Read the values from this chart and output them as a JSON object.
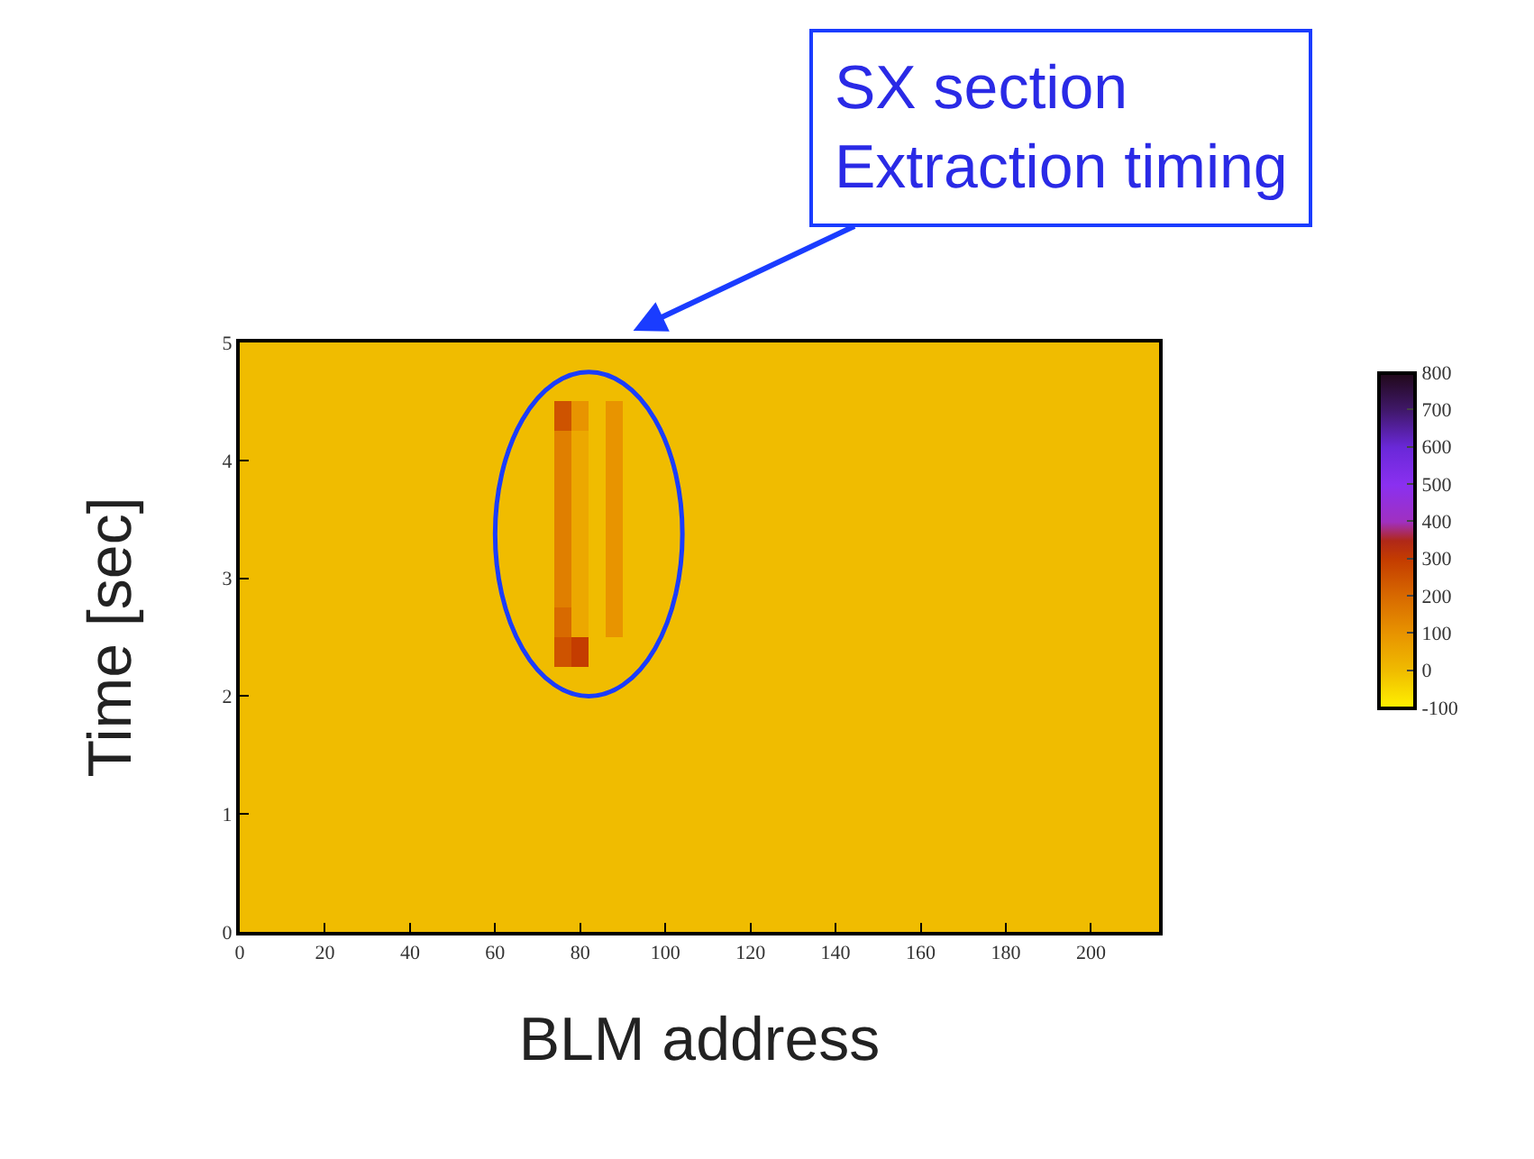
{
  "chart_data": {
    "type": "heatmap",
    "xlabel": "BLM address",
    "ylabel": "Time [sec]",
    "x": [
      0,
      4,
      8,
      12,
      16,
      20,
      24,
      28,
      32,
      36,
      40,
      44,
      48,
      52,
      56,
      60,
      64,
      68,
      72,
      76,
      80,
      84,
      88,
      92,
      96,
      100,
      104,
      108,
      112,
      116,
      120,
      124,
      128,
      132,
      136,
      140,
      144,
      148,
      152,
      156,
      160,
      164,
      168,
      172,
      176,
      180,
      184,
      188,
      192,
      196,
      200,
      204,
      208,
      212,
      216
    ],
    "y": [
      4.875,
      4.625,
      4.375,
      4.125,
      3.875,
      3.625,
      3.375,
      3.125,
      2.875,
      2.625,
      2.375,
      2.125,
      1.875,
      1.625,
      1.375,
      1.125,
      0.875,
      0.625,
      0.375,
      0.125
    ],
    "cells": [
      [
        0,
        0,
        0,
        0,
        0,
        0,
        0,
        0,
        0,
        0,
        0,
        0,
        0,
        0,
        0,
        0,
        0,
        0,
        0,
        0,
        0,
        0,
        0,
        0,
        0,
        0,
        0,
        0,
        0,
        0,
        0,
        0,
        0,
        0,
        0,
        0,
        0,
        0,
        0,
        0,
        0,
        0,
        0,
        0,
        0,
        0,
        0,
        0,
        0,
        0,
        0,
        0,
        0,
        0,
        0
      ],
      [
        0,
        0,
        0,
        0,
        0,
        0,
        0,
        0,
        0,
        0,
        0,
        0,
        0,
        0,
        0,
        0,
        0,
        0,
        0,
        0,
        0,
        0,
        0,
        0,
        0,
        0,
        0,
        0,
        0,
        0,
        0,
        0,
        0,
        0,
        0,
        0,
        0,
        0,
        0,
        0,
        0,
        0,
        0,
        0,
        0,
        0,
        0,
        0,
        0,
        0,
        0,
        0,
        0,
        0,
        0
      ],
      [
        0,
        0,
        0,
        0,
        0,
        0,
        0,
        0,
        0,
        0,
        0,
        0,
        0,
        0,
        0,
        0,
        0,
        0,
        0,
        250,
        100,
        0,
        100,
        0,
        0,
        0,
        0,
        0,
        0,
        0,
        0,
        0,
        0,
        0,
        0,
        0,
        0,
        0,
        0,
        0,
        0,
        0,
        0,
        0,
        0,
        0,
        0,
        0,
        0,
        0,
        0,
        0,
        0,
        0,
        0
      ],
      [
        0,
        0,
        0,
        0,
        0,
        0,
        0,
        0,
        0,
        0,
        0,
        0,
        0,
        0,
        0,
        0,
        0,
        0,
        0,
        150,
        50,
        0,
        100,
        0,
        0,
        0,
        0,
        0,
        0,
        0,
        0,
        0,
        0,
        0,
        0,
        0,
        0,
        0,
        0,
        0,
        0,
        0,
        0,
        0,
        0,
        0,
        0,
        0,
        0,
        0,
        0,
        0,
        0,
        0,
        0
      ],
      [
        0,
        0,
        0,
        0,
        0,
        0,
        0,
        0,
        0,
        0,
        0,
        0,
        0,
        0,
        0,
        0,
        0,
        0,
        0,
        150,
        50,
        0,
        100,
        0,
        0,
        0,
        0,
        0,
        0,
        0,
        0,
        0,
        0,
        0,
        0,
        0,
        0,
        0,
        0,
        0,
        0,
        0,
        0,
        0,
        0,
        0,
        0,
        0,
        0,
        0,
        0,
        0,
        0,
        0,
        0
      ],
      [
        0,
        0,
        0,
        0,
        0,
        0,
        0,
        0,
        0,
        0,
        0,
        0,
        0,
        0,
        0,
        0,
        0,
        0,
        0,
        150,
        50,
        0,
        100,
        0,
        0,
        0,
        0,
        0,
        0,
        0,
        0,
        0,
        0,
        0,
        0,
        0,
        0,
        0,
        0,
        0,
        0,
        0,
        0,
        0,
        0,
        0,
        0,
        0,
        0,
        0,
        0,
        0,
        0,
        0,
        0
      ],
      [
        0,
        0,
        0,
        0,
        0,
        0,
        0,
        0,
        0,
        0,
        0,
        0,
        0,
        0,
        0,
        0,
        0,
        0,
        0,
        150,
        50,
        0,
        100,
        0,
        0,
        0,
        0,
        0,
        0,
        0,
        0,
        0,
        0,
        0,
        0,
        0,
        0,
        0,
        0,
        0,
        0,
        0,
        0,
        0,
        0,
        0,
        0,
        0,
        0,
        0,
        0,
        0,
        0,
        0,
        0
      ],
      [
        0,
        0,
        0,
        0,
        0,
        0,
        0,
        0,
        0,
        0,
        0,
        0,
        0,
        0,
        0,
        0,
        0,
        0,
        0,
        150,
        50,
        0,
        100,
        0,
        0,
        0,
        0,
        0,
        0,
        0,
        0,
        0,
        0,
        0,
        0,
        0,
        0,
        0,
        0,
        0,
        0,
        0,
        0,
        0,
        0,
        0,
        0,
        0,
        0,
        0,
        0,
        0,
        0,
        0,
        0
      ],
      [
        0,
        0,
        0,
        0,
        0,
        0,
        0,
        0,
        0,
        0,
        0,
        0,
        0,
        0,
        0,
        0,
        0,
        0,
        0,
        150,
        50,
        0,
        100,
        0,
        0,
        0,
        0,
        0,
        0,
        0,
        0,
        0,
        0,
        0,
        0,
        0,
        0,
        0,
        0,
        0,
        0,
        0,
        0,
        0,
        0,
        0,
        0,
        0,
        0,
        0,
        0,
        0,
        0,
        0,
        0
      ],
      [
        0,
        0,
        0,
        0,
        0,
        0,
        0,
        0,
        0,
        0,
        0,
        0,
        0,
        0,
        0,
        0,
        0,
        0,
        0,
        200,
        50,
        0,
        100,
        0,
        0,
        0,
        0,
        0,
        0,
        0,
        0,
        0,
        0,
        0,
        0,
        0,
        0,
        0,
        0,
        0,
        0,
        0,
        0,
        0,
        0,
        0,
        0,
        0,
        0,
        0,
        0,
        0,
        0,
        0,
        0
      ],
      [
        0,
        0,
        0,
        0,
        0,
        0,
        0,
        0,
        0,
        0,
        0,
        0,
        0,
        0,
        0,
        0,
        0,
        0,
        0,
        250,
        300,
        0,
        0,
        0,
        0,
        0,
        0,
        0,
        0,
        0,
        0,
        0,
        0,
        0,
        0,
        0,
        0,
        0,
        0,
        0,
        0,
        0,
        0,
        0,
        0,
        0,
        0,
        0,
        0,
        0,
        0,
        0,
        0,
        0,
        0
      ],
      [
        0,
        0,
        0,
        0,
        0,
        0,
        0,
        0,
        0,
        0,
        0,
        0,
        0,
        0,
        0,
        0,
        0,
        0,
        0,
        0,
        0,
        0,
        0,
        0,
        0,
        0,
        0,
        0,
        0,
        0,
        0,
        0,
        0,
        0,
        0,
        0,
        0,
        0,
        0,
        0,
        0,
        0,
        0,
        0,
        0,
        0,
        0,
        0,
        0,
        0,
        0,
        0,
        0,
        0,
        0
      ],
      [
        0,
        0,
        0,
        0,
        0,
        0,
        0,
        0,
        0,
        0,
        0,
        0,
        0,
        0,
        0,
        0,
        0,
        0,
        0,
        0,
        0,
        0,
        0,
        0,
        0,
        0,
        0,
        0,
        0,
        0,
        0,
        0,
        0,
        0,
        0,
        0,
        0,
        0,
        0,
        0,
        0,
        0,
        0,
        0,
        0,
        0,
        0,
        0,
        0,
        0,
        0,
        0,
        0,
        0,
        0
      ],
      [
        0,
        0,
        0,
        0,
        0,
        0,
        0,
        0,
        0,
        0,
        0,
        0,
        0,
        0,
        0,
        0,
        0,
        0,
        0,
        0,
        0,
        0,
        0,
        0,
        0,
        0,
        0,
        0,
        0,
        0,
        0,
        0,
        0,
        0,
        0,
        0,
        0,
        0,
        0,
        0,
        0,
        0,
        0,
        0,
        0,
        0,
        0,
        0,
        0,
        0,
        0,
        0,
        0,
        0,
        0
      ],
      [
        0,
        0,
        0,
        0,
        0,
        0,
        0,
        0,
        0,
        0,
        0,
        0,
        0,
        0,
        0,
        0,
        0,
        0,
        0,
        0,
        0,
        0,
        0,
        0,
        0,
        0,
        0,
        0,
        0,
        0,
        0,
        0,
        0,
        0,
        0,
        0,
        0,
        0,
        0,
        0,
        0,
        0,
        0,
        0,
        0,
        0,
        0,
        0,
        0,
        0,
        0,
        0,
        0,
        0,
        0
      ],
      [
        0,
        0,
        0,
        0,
        0,
        0,
        0,
        0,
        0,
        0,
        0,
        0,
        0,
        0,
        0,
        0,
        0,
        0,
        0,
        0,
        0,
        0,
        0,
        0,
        0,
        0,
        0,
        0,
        0,
        0,
        0,
        0,
        0,
        0,
        0,
        0,
        0,
        0,
        0,
        0,
        0,
        0,
        0,
        0,
        0,
        0,
        0,
        0,
        0,
        0,
        0,
        0,
        0,
        0,
        0
      ],
      [
        0,
        0,
        0,
        0,
        0,
        0,
        0,
        0,
        0,
        0,
        0,
        0,
        0,
        0,
        0,
        0,
        0,
        0,
        0,
        0,
        0,
        0,
        0,
        0,
        0,
        0,
        0,
        0,
        0,
        0,
        0,
        0,
        0,
        0,
        0,
        0,
        0,
        0,
        0,
        0,
        0,
        0,
        0,
        0,
        0,
        0,
        0,
        0,
        0,
        0,
        0,
        0,
        0,
        0,
        0
      ],
      [
        0,
        0,
        0,
        0,
        0,
        0,
        0,
        0,
        0,
        0,
        0,
        0,
        0,
        0,
        0,
        0,
        0,
        0,
        0,
        0,
        0,
        0,
        0,
        0,
        0,
        0,
        0,
        0,
        0,
        0,
        0,
        0,
        0,
        0,
        0,
        0,
        0,
        0,
        0,
        0,
        0,
        0,
        0,
        0,
        0,
        0,
        0,
        0,
        0,
        0,
        0,
        0,
        0,
        0,
        0
      ],
      [
        0,
        0,
        0,
        0,
        0,
        0,
        0,
        0,
        0,
        0,
        0,
        0,
        0,
        0,
        0,
        0,
        0,
        0,
        0,
        0,
        0,
        0,
        0,
        0,
        0,
        0,
        0,
        0,
        0,
        0,
        0,
        0,
        0,
        0,
        0,
        0,
        0,
        0,
        0,
        0,
        0,
        0,
        0,
        0,
        0,
        0,
        0,
        0,
        0,
        0,
        0,
        0,
        0,
        0,
        0
      ],
      [
        0,
        0,
        0,
        0,
        0,
        0,
        0,
        0,
        0,
        0,
        0,
        0,
        0,
        0,
        0,
        0,
        0,
        0,
        0,
        0,
        0,
        0,
        0,
        0,
        0,
        0,
        0,
        0,
        0,
        0,
        0,
        0,
        0,
        0,
        0,
        0,
        0,
        0,
        0,
        0,
        0,
        0,
        0,
        0,
        0,
        0,
        0,
        0,
        0,
        0,
        0,
        0,
        0,
        0,
        0
      ]
    ],
    "xlim": [
      0,
      216
    ],
    "xticks": [
      0,
      20,
      40,
      60,
      80,
      100,
      120,
      140,
      160,
      180,
      200
    ],
    "ylim": [
      0,
      5
    ],
    "yticks": [
      0,
      1,
      2,
      3,
      4,
      5
    ],
    "clim": [
      -100,
      800
    ],
    "cticks": [
      -100,
      0,
      100,
      200,
      300,
      400,
      500,
      600,
      700,
      800
    ],
    "annotations": [
      "SX section\nExtraction timing"
    ]
  }
}
